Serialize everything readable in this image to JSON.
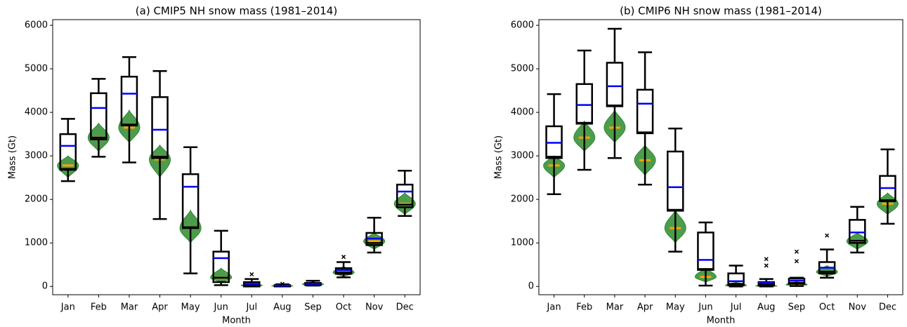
{
  "chart_data": [
    {
      "type": "box",
      "title": "(a) CMIP5 NH snow mass (1981–2014)",
      "xlabel": "Month",
      "ylabel": "Mass (Gt)",
      "categories": [
        "Jan",
        "Feb",
        "Mar",
        "Apr",
        "May",
        "Jun",
        "Jul",
        "Aug",
        "Sep",
        "Oct",
        "Nov",
        "Dec"
      ],
      "ylim": [
        -190,
        6130
      ],
      "yticks": [
        0,
        1000,
        2000,
        3000,
        4000,
        5000,
        6000
      ],
      "box_color": "#000000",
      "mean_color": "#0000ff",
      "violin_color": "#2e8b2e",
      "violin_median_color": "#ffa500",
      "boxes": {
        "whislo": [
          2420,
          2980,
          2850,
          1550,
          300,
          30,
          0,
          0,
          20,
          210,
          780,
          1620
        ],
        "q1": [
          2680,
          3380,
          3700,
          2950,
          1340,
          100,
          0,
          0,
          30,
          290,
          950,
          1820
        ],
        "med": [
          2700,
          3420,
          3720,
          2980,
          1360,
          200,
          30,
          10,
          50,
          320,
          1000,
          1880
        ],
        "q3": [
          3500,
          4440,
          4820,
          4350,
          2580,
          800,
          100,
          30,
          80,
          420,
          1230,
          2340
        ],
        "whishi": [
          3850,
          4770,
          5270,
          4950,
          3200,
          1280,
          170,
          50,
          130,
          560,
          1580,
          2660
        ],
        "mean": [
          3230,
          4100,
          4430,
          3600,
          2290,
          650,
          60,
          20,
          60,
          380,
          1100,
          2180
        ],
        "fliers": [
          [],
          [],
          [],
          [],
          [],
          [],
          [
            280
          ],
          [
            60
          ],
          [],
          [
            680
          ],
          [],
          []
        ]
      },
      "violins": {
        "min": [
          2500,
          3100,
          3300,
          2500,
          1000,
          100,
          0,
          0,
          10,
          230,
          850,
          1650
        ],
        "max": [
          3000,
          3750,
          4050,
          3250,
          1750,
          420,
          80,
          40,
          110,
          460,
          1230,
          2150
        ],
        "median": [
          2780,
          3420,
          3650,
          2920,
          1340,
          200,
          20,
          10,
          50,
          320,
          1040,
          1900
        ]
      }
    },
    {
      "type": "box",
      "title": "(b) CMIP6 NH snow mass (1981–2014)",
      "xlabel": "Month",
      "ylabel": "Mass (Gt)",
      "categories": [
        "Jan",
        "Feb",
        "Mar",
        "Apr",
        "May",
        "Jun",
        "Jul",
        "Aug",
        "Sep",
        "Oct",
        "Nov",
        "Dec"
      ],
      "ylim": [
        -190,
        6130
      ],
      "yticks": [
        0,
        1000,
        2000,
        3000,
        4000,
        5000,
        6000
      ],
      "box_color": "#000000",
      "mean_color": "#0000ff",
      "violin_color": "#2e8b2e",
      "violin_median_color": "#ffa500",
      "boxes": {
        "whislo": [
          2120,
          2680,
          2950,
          2340,
          800,
          20,
          0,
          0,
          10,
          200,
          780,
          1440
        ],
        "q1": [
          2950,
          3740,
          4140,
          3520,
          1740,
          380,
          30,
          20,
          60,
          300,
          1000,
          1960
        ],
        "med": [
          2980,
          3760,
          4160,
          3540,
          1760,
          400,
          60,
          40,
          80,
          340,
          1050,
          1980
        ],
        "q3": [
          3680,
          4650,
          5140,
          4520,
          3100,
          1240,
          300,
          100,
          180,
          560,
          1530,
          2540
        ],
        "whishi": [
          4420,
          5420,
          5920,
          5380,
          3630,
          1470,
          480,
          170,
          200,
          850,
          1830,
          3150
        ],
        "mean": [
          3300,
          4170,
          4600,
          4200,
          2280,
          610,
          120,
          80,
          130,
          430,
          1240,
          2260
        ],
        "fliers": [
          [],
          [],
          [],
          [],
          [],
          [],
          [],
          [
            480,
            630
          ],
          [
            580,
            800
          ],
          [
            1170
          ],
          [],
          []
        ]
      },
      "violins": {
        "min": [
          2500,
          3100,
          3300,
          2550,
          1000,
          100,
          0,
          0,
          10,
          230,
          850,
          1650
        ],
        "max": [
          3000,
          3800,
          4050,
          3250,
          1750,
          420,
          100,
          50,
          110,
          480,
          1230,
          2150
        ],
        "median": [
          2780,
          3420,
          3650,
          2900,
          1340,
          220,
          20,
          10,
          40,
          330,
          1040,
          1900
        ]
      }
    }
  ]
}
